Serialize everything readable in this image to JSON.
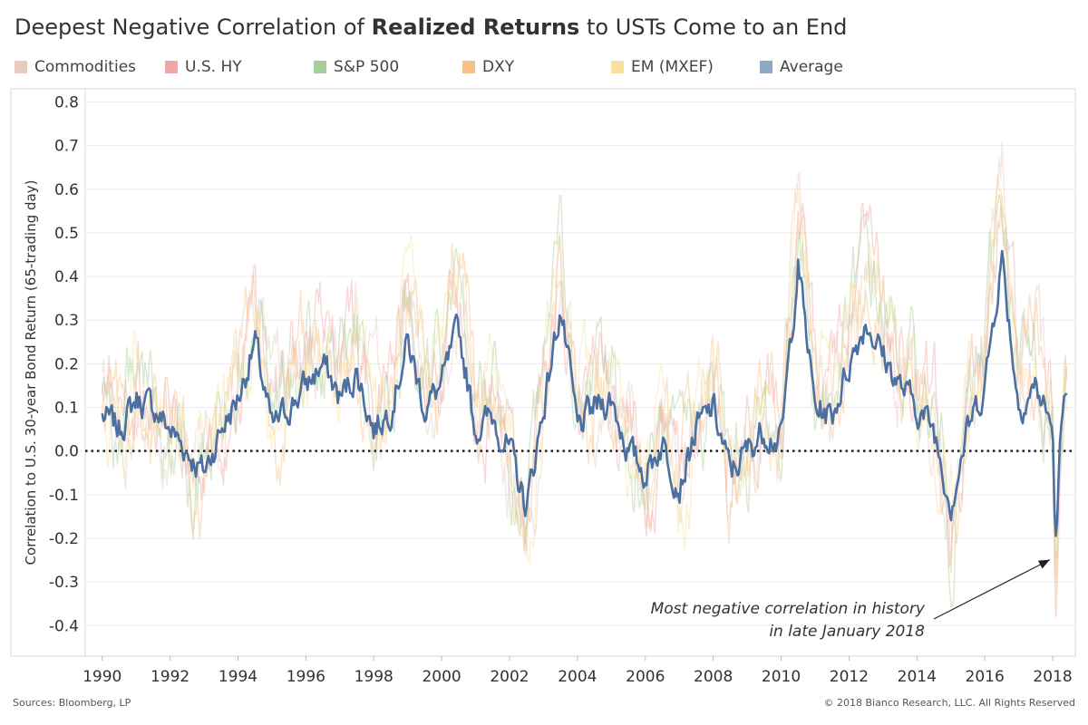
{
  "title_parts": [
    "Deepest Negative Correlation of ",
    "Realized Returns",
    " to USTs Come to an End"
  ],
  "legend": [
    {
      "name": "Commodities",
      "color": "#e6cbc0"
    },
    {
      "name": "U.S. HY",
      "color": "#f0a8a6"
    },
    {
      "name": "S&P 500",
      "color": "#a8cf9a"
    },
    {
      "name": "DXY",
      "color": "#f5c08a"
    },
    {
      "name": "EM (MXEF)",
      "color": "#f7e0a0"
    },
    {
      "name": "Average",
      "color": "#8fa8c4"
    }
  ],
  "annotation": {
    "lines": [
      "Most negative correlation in history",
      "in late January 2018"
    ],
    "date": "2018-01-29",
    "value": -0.22
  },
  "footer": {
    "source": "Sources: Bloomberg, LP",
    "copyright": "© 2018 Bianco Research, LLC. All Rights Reserved"
  },
  "chart_data": {
    "type": "line",
    "ylabel": "Correlation to U.S. 30-year Bond Return (65-trading day)",
    "xlabel": "",
    "xlim": [
      "1989-07-01",
      "2018-09-01"
    ],
    "ylim": [
      -0.47,
      0.83
    ],
    "x_ticks": [
      "1990",
      "1992",
      "1994",
      "1996",
      "1998",
      "2000",
      "2002",
      "2004",
      "2006",
      "2008",
      "2010",
      "2012",
      "2014",
      "2016",
      "2018"
    ],
    "y_ticks": [
      "-0.4",
      "-0.3",
      "-0.2",
      "-0.1",
      "0.0",
      "0.1",
      "0.2",
      "0.3",
      "0.4",
      "0.5",
      "0.6",
      "0.7",
      "0.8"
    ],
    "reference_line": 0,
    "grid": "horizontal",
    "series": [
      {
        "name": "Average",
        "color": "#4a6fa0",
        "x": [
          "1990-01-01",
          "1990-07-01",
          "1991-01-01",
          "1991-07-01",
          "1992-01-01",
          "1992-07-01",
          "1993-01-01",
          "1993-07-01",
          "1994-01-01",
          "1994-07-01",
          "1995-01-01",
          "1995-07-01",
          "1996-01-01",
          "1996-07-01",
          "1997-01-01",
          "1997-07-01",
          "1998-01-01",
          "1998-07-01",
          "1999-01-01",
          "1999-07-01",
          "2000-01-01",
          "2000-07-01",
          "2001-01-01",
          "2001-07-01",
          "2002-01-01",
          "2002-07-01",
          "2003-01-01",
          "2003-07-01",
          "2004-01-01",
          "2004-07-01",
          "2005-01-01",
          "2005-07-01",
          "2006-01-01",
          "2006-07-01",
          "2007-01-01",
          "2007-07-01",
          "2008-01-01",
          "2008-07-01",
          "2009-01-01",
          "2009-07-01",
          "2010-01-01",
          "2010-07-01",
          "2011-01-01",
          "2011-07-01",
          "2012-01-01",
          "2012-07-01",
          "2013-01-01",
          "2013-07-01",
          "2014-01-01",
          "2014-07-01",
          "2015-01-01",
          "2015-07-01",
          "2016-01-01",
          "2016-07-01",
          "2017-01-01",
          "2017-07-01",
          "2018-01-01",
          "2018-02-01",
          "2018-04-01",
          "2018-06-01"
        ],
        "values": [
          0.08,
          0.05,
          0.12,
          0.1,
          0.05,
          0.0,
          -0.05,
          0.05,
          0.12,
          0.25,
          0.05,
          0.1,
          0.15,
          0.2,
          0.12,
          0.18,
          0.05,
          0.1,
          0.25,
          0.1,
          0.15,
          0.28,
          0.05,
          0.08,
          0.0,
          -0.13,
          0.1,
          0.33,
          0.05,
          0.1,
          0.12,
          0.0,
          -0.05,
          0.02,
          -0.08,
          0.05,
          0.1,
          -0.05,
          0.0,
          0.05,
          0.02,
          0.43,
          0.1,
          0.08,
          0.2,
          0.3,
          0.22,
          0.15,
          0.1,
          0.05,
          -0.12,
          0.05,
          0.15,
          0.45,
          0.1,
          0.15,
          0.05,
          -0.22,
          0.05,
          0.13
        ]
      }
    ],
    "background_series": [
      "Commodities",
      "U.S. HY",
      "S&P 500",
      "DXY",
      "EM (MXEF)"
    ]
  }
}
